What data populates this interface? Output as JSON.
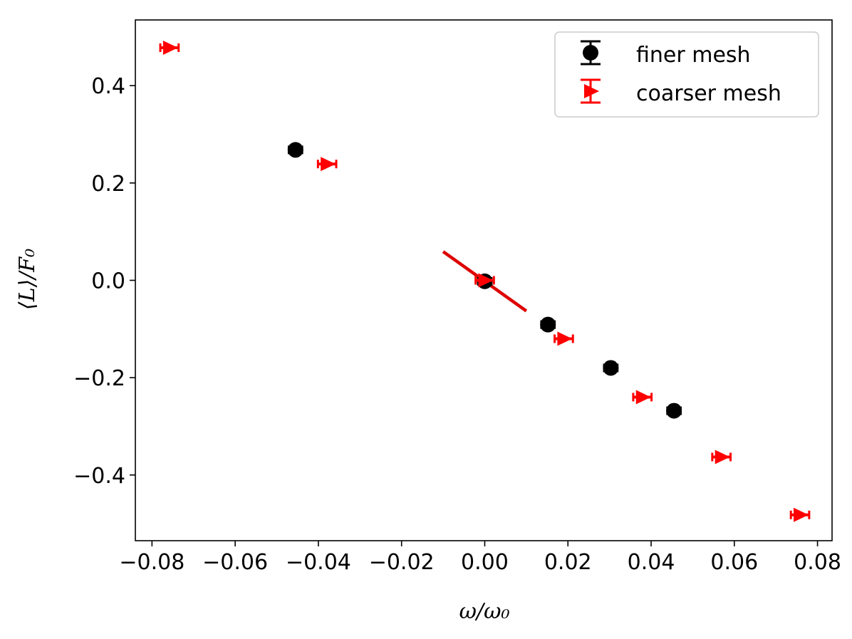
{
  "chart_data": {
    "type": "scatter",
    "xlabel": "ω/ω₀",
    "ylabel": "⟨L⟩/F₀",
    "xlim": [
      -0.084,
      0.0835
    ],
    "ylim": [
      -0.535,
      0.535
    ],
    "xticks": [
      -0.08,
      -0.06,
      -0.04,
      -0.02,
      0.0,
      0.02,
      0.04,
      0.06,
      0.08
    ],
    "xtick_labels": [
      "−0.08",
      "−0.06",
      "−0.04",
      "−0.02",
      "0.00",
      "0.02",
      "0.04",
      "0.06",
      "0.08"
    ],
    "yticks": [
      -0.4,
      -0.2,
      0.0,
      0.2,
      0.4
    ],
    "ytick_labels": [
      "−0.4",
      "−0.2",
      "0.0",
      "0.2",
      "0.4"
    ],
    "grid": false,
    "legend_position": "top-right",
    "series": [
      {
        "name": "finer mesh",
        "marker": "circle",
        "color": "#000000",
        "x": [
          -0.0455,
          0.0,
          0.0152,
          0.0303,
          0.0455
        ],
        "y": [
          0.268,
          -0.002,
          -0.091,
          -0.18,
          -0.268
        ],
        "xerr": 0.0016
      },
      {
        "name": "coarser mesh",
        "marker": "triangle-right",
        "color": "#ff0000",
        "x": [
          -0.0758,
          -0.0379,
          0.0,
          0.019,
          0.0379,
          0.0569,
          0.0758
        ],
        "y": [
          0.478,
          0.239,
          0.0,
          -0.12,
          -0.24,
          -0.363,
          -0.482
        ],
        "xerr": 0.0022
      }
    ],
    "fit_line": {
      "color": "#dd0000",
      "x": [
        -0.01,
        0.01
      ],
      "y": [
        0.059,
        -0.063
      ]
    }
  }
}
